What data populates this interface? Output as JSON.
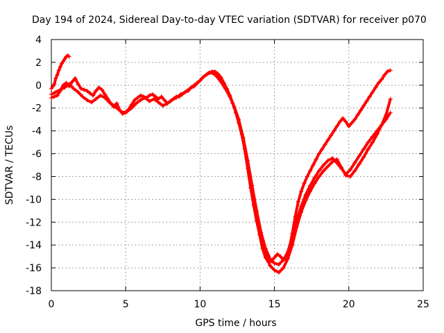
{
  "chart_data": {
    "type": "line",
    "title": "Day 194 of 2024, Sidereal Day-to-day VTEC variation (SDTVAR) for receiver p070",
    "xlabel": "GPS time / hours",
    "ylabel": "SDTVAR / TECUs",
    "xlim": [
      0,
      25
    ],
    "ylim": [
      -18,
      4
    ],
    "xticks": [
      "0",
      "5",
      "10",
      "15",
      "20",
      "25"
    ],
    "yticks": [
      "4",
      "2",
      "0",
      "-2",
      "-4",
      "-6",
      "-8",
      "-10",
      "-12",
      "-14",
      "-16",
      "-18"
    ],
    "grid": true,
    "color": "#ff0000",
    "marker": "plus",
    "series": [
      {
        "x": [
          0.0,
          0.1,
          0.2,
          0.3,
          0.4,
          0.5,
          0.6,
          0.7,
          0.8,
          0.9,
          1.0,
          1.1,
          1.2
        ],
        "y": [
          -0.3,
          -0.1,
          0.1,
          0.6,
          0.9,
          1.3,
          1.6,
          1.9,
          2.1,
          2.3,
          2.5,
          2.6,
          2.5
        ]
      },
      {
        "x": [
          0.0,
          0.2,
          0.4,
          0.6,
          0.8,
          1.0,
          1.2,
          1.4,
          1.6,
          1.8,
          2.0,
          2.2,
          2.4,
          2.6,
          2.8,
          3.0,
          3.2,
          3.4,
          3.6,
          3.8,
          4.0,
          4.2,
          4.4,
          4.6,
          4.8,
          5.0,
          5.2,
          5.4,
          5.6,
          5.8,
          6.0,
          6.2,
          6.4,
          6.6,
          6.8,
          7.0,
          7.2,
          7.4,
          7.6,
          7.8,
          8.0,
          8.2,
          8.4,
          8.6,
          8.8,
          9.0,
          9.2,
          9.4,
          9.6,
          9.8,
          10.0,
          10.2,
          10.4,
          10.6,
          10.8,
          11.0,
          11.2,
          11.4,
          11.6,
          11.8,
          12.0,
          12.2,
          12.4,
          12.6,
          12.8,
          13.0,
          13.2,
          13.4,
          13.6,
          13.8,
          14.0,
          14.2,
          14.4,
          14.6,
          14.8,
          15.0,
          15.2,
          15.4,
          15.6,
          15.8,
          16.0,
          16.2,
          16.4,
          16.6,
          16.8,
          17.0,
          17.2,
          17.4,
          17.6,
          17.8,
          18.0,
          18.2,
          18.4,
          18.6,
          18.8,
          19.0,
          19.2,
          19.4,
          19.6,
          19.8,
          20.0,
          20.2,
          20.4,
          20.6,
          20.8,
          21.0,
          21.2,
          21.4,
          21.6,
          21.8,
          22.0,
          22.2,
          22.4,
          22.6,
          22.8
        ],
        "y": [
          -1.1,
          -1.0,
          -0.9,
          -0.5,
          0.0,
          0.2,
          -0.1,
          0.3,
          0.6,
          0.1,
          -0.3,
          -0.4,
          -0.5,
          -0.7,
          -0.9,
          -0.5,
          -0.2,
          -0.4,
          -0.8,
          -1.2,
          -1.6,
          -1.9,
          -1.6,
          -2.2,
          -2.5,
          -2.4,
          -2.1,
          -1.7,
          -1.3,
          -1.1,
          -0.9,
          -1.0,
          -1.1,
          -0.9,
          -0.8,
          -1.0,
          -1.2,
          -1.0,
          -1.3,
          -1.6,
          -1.4,
          -1.2,
          -1.0,
          -1.0,
          -0.8,
          -0.6,
          -0.5,
          -0.2,
          0.0,
          0.2,
          0.4,
          0.7,
          0.9,
          1.1,
          1.2,
          1.2,
          1.0,
          0.7,
          0.2,
          -0.3,
          -0.9,
          -1.6,
          -2.4,
          -3.3,
          -4.3,
          -5.6,
          -7.3,
          -9.0,
          -10.5,
          -11.9,
          -13.1,
          -14.3,
          -15.1,
          -15.5,
          -15.4,
          -15.1,
          -14.8,
          -15.0,
          -15.3,
          -15.2,
          -14.3,
          -13.0,
          -11.5,
          -10.2,
          -9.3,
          -8.6,
          -8.0,
          -7.5,
          -7.0,
          -6.5,
          -6.0,
          -5.6,
          -5.2,
          -4.8,
          -4.4,
          -4.0,
          -3.6,
          -3.2,
          -2.9,
          -3.2,
          -3.6,
          -3.3,
          -3.0,
          -2.6,
          -2.2,
          -1.8,
          -1.4,
          -1.0,
          -0.6,
          -0.2,
          0.2,
          0.5,
          0.9,
          1.2,
          1.3
        ]
      },
      {
        "x": [
          0.0,
          0.3,
          0.6,
          0.9,
          1.2,
          1.5,
          1.8,
          2.1,
          2.4,
          2.7,
          3.0,
          3.3,
          3.6,
          3.9,
          4.2,
          4.5,
          4.8,
          5.1,
          5.4,
          5.7,
          6.0,
          6.3,
          6.6,
          6.9,
          7.2,
          7.5,
          7.8,
          8.1,
          8.4,
          8.7,
          9.0,
          9.3,
          9.6,
          9.9,
          10.2,
          10.5,
          10.8,
          11.1,
          11.4,
          11.7,
          12.0,
          12.3,
          12.6,
          12.9,
          13.2,
          13.5,
          13.8,
          14.1,
          14.4,
          14.7,
          15.0,
          15.3,
          15.6,
          15.9,
          16.2,
          16.5,
          16.8,
          17.1,
          17.4,
          17.7,
          18.0,
          18.3,
          18.6,
          18.9,
          19.2,
          19.5,
          19.8,
          20.1,
          20.4,
          20.7,
          21.0,
          21.3,
          21.6,
          21.9,
          22.2,
          22.5,
          22.8
        ],
        "y": [
          -0.8,
          -0.6,
          -0.4,
          -0.2,
          0.1,
          -0.3,
          -0.6,
          -1.0,
          -1.3,
          -1.5,
          -1.2,
          -0.9,
          -1.1,
          -1.5,
          -1.8,
          -2.1,
          -2.4,
          -2.3,
          -2.0,
          -1.6,
          -1.3,
          -1.1,
          -1.4,
          -1.2,
          -1.5,
          -1.8,
          -1.6,
          -1.3,
          -1.1,
          -0.8,
          -0.6,
          -0.3,
          -0.1,
          0.3,
          0.7,
          1.0,
          1.1,
          0.8,
          0.3,
          -0.3,
          -1.0,
          -1.9,
          -3.0,
          -4.6,
          -6.6,
          -8.8,
          -11.0,
          -12.9,
          -14.3,
          -15.2,
          -15.6,
          -15.7,
          -15.3,
          -14.6,
          -13.3,
          -11.8,
          -10.6,
          -9.6,
          -8.8,
          -8.1,
          -7.5,
          -7.0,
          -6.6,
          -6.4,
          -6.8,
          -7.3,
          -7.8,
          -7.4,
          -6.8,
          -6.2,
          -5.6,
          -5.0,
          -4.5,
          -4.0,
          -3.5,
          -3.0,
          -2.4
        ]
      },
      {
        "x": [
          13.8,
          14.1,
          14.4,
          14.7,
          15.0,
          15.3,
          15.6,
          15.9,
          16.2,
          16.5,
          16.8,
          17.1,
          17.4,
          17.7,
          18.0,
          18.3,
          18.6,
          18.9,
          19.2,
          19.5,
          19.8,
          20.1,
          20.4,
          20.7,
          21.0,
          21.3,
          21.6,
          21.9,
          22.2,
          22.5,
          22.8
        ],
        "y": [
          -11.5,
          -13.4,
          -14.8,
          -15.8,
          -16.2,
          -16.4,
          -16.0,
          -15.2,
          -14.0,
          -12.4,
          -11.1,
          -10.1,
          -9.3,
          -8.6,
          -8.0,
          -7.5,
          -7.1,
          -6.7,
          -6.5,
          -7.2,
          -7.9,
          -8.0,
          -7.5,
          -6.9,
          -6.3,
          -5.6,
          -5.0,
          -4.3,
          -3.5,
          -2.6,
          -1.2
        ]
      }
    ]
  }
}
